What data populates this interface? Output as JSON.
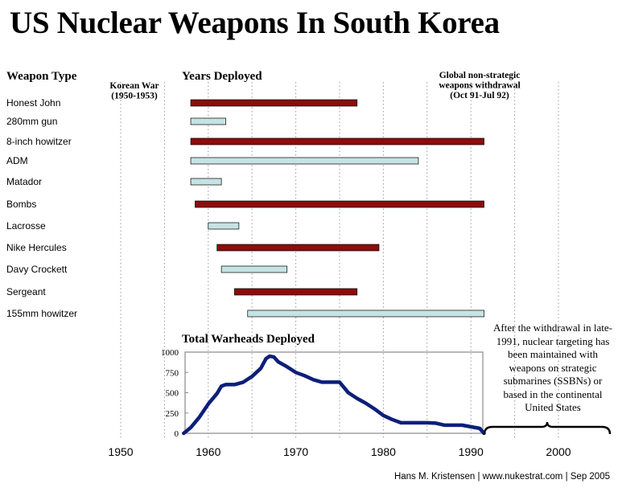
{
  "title": "US Nuclear Weapons In South Korea",
  "credit": "Hans M. Kristensen | www.nukestrat.com | Sep 2005",
  "note": "After the withdrawal in late-1991, nuclear targeting has been maintained with weapons on strategic submarines (SSBNs) or based in the continental United States",
  "colors": {
    "dark_bar": "#8b0d0d",
    "light_bar": "#c6e3e3",
    "line": "#0c1f7a",
    "grid": "#999999"
  },
  "chart_data": [
    {
      "type": "bar",
      "subtype": "gantt",
      "column_header": "Weapon Type",
      "title": "Years Deployed",
      "x_ticks": [
        1950,
        1960,
        1970,
        1980,
        1990,
        2000
      ],
      "annotations": [
        {
          "label": [
            "Korean War",
            "(1950-1953)"
          ],
          "span": [
            1950,
            1953
          ]
        },
        {
          "label": [
            "Global non-strategic",
            "weapons withdrawal",
            "(Oct 91-Jul 92)"
          ],
          "span": [
            1991.8,
            1992.5
          ]
        }
      ],
      "series": [
        {
          "name": "Honest John",
          "start": 1958,
          "end": 1977,
          "color": "dark"
        },
        {
          "name": "280mm gun",
          "start": 1958,
          "end": 1962,
          "color": "light"
        },
        {
          "name": "8-inch howitzer",
          "start": 1958,
          "end": 1991.5,
          "color": "dark"
        },
        {
          "name": "ADM",
          "start": 1958,
          "end": 1984,
          "color": "light"
        },
        {
          "name": "Matador",
          "start": 1958,
          "end": 1961.5,
          "color": "light"
        },
        {
          "name": "Bombs",
          "start": 1958.5,
          "end": 1991.5,
          "color": "dark"
        },
        {
          "name": "Lacrosse",
          "start": 1960,
          "end": 1963.5,
          "color": "light"
        },
        {
          "name": "Nike Hercules",
          "start": 1961,
          "end": 1979.5,
          "color": "dark"
        },
        {
          "name": "Davy Crockett",
          "start": 1961.5,
          "end": 1969,
          "color": "light"
        },
        {
          "name": "Sergeant",
          "start": 1963,
          "end": 1977,
          "color": "dark"
        },
        {
          "name": "155mm howitzer",
          "start": 1964.5,
          "end": 1991.5,
          "color": "light"
        }
      ]
    },
    {
      "type": "line",
      "title": "Total Warheads Deployed",
      "ylim": [
        0,
        1000
      ],
      "y_ticks": [
        0,
        250,
        500,
        750,
        1000
      ],
      "x": [
        1957.2,
        1958,
        1959,
        1960,
        1961,
        1961.5,
        1962,
        1963,
        1964,
        1965,
        1966,
        1966.6,
        1967,
        1967.5,
        1968,
        1969,
        1970,
        1971,
        1972,
        1973,
        1974,
        1975,
        1976,
        1977,
        1978,
        1979,
        1980,
        1981,
        1982,
        1983,
        1984,
        1985,
        1986,
        1987,
        1988,
        1989,
        1990,
        1991,
        1991.5
      ],
      "values": [
        0,
        70,
        200,
        360,
        490,
        580,
        600,
        600,
        630,
        700,
        800,
        920,
        950,
        940,
        880,
        820,
        750,
        710,
        660,
        630,
        630,
        630,
        500,
        430,
        370,
        300,
        220,
        170,
        130,
        130,
        130,
        130,
        125,
        100,
        100,
        100,
        80,
        60,
        0
      ]
    }
  ]
}
